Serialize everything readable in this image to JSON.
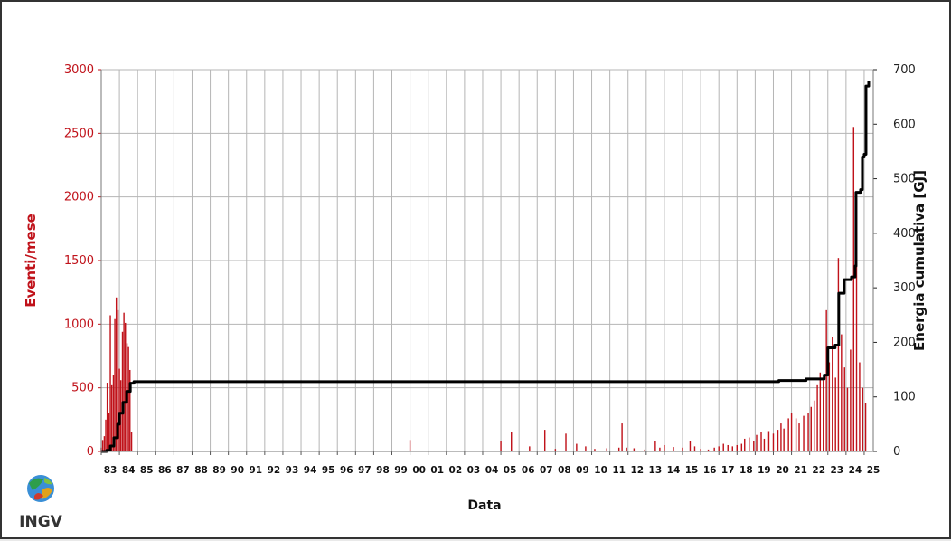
{
  "chart_data": {
    "type": "bar",
    "title": "",
    "xlabel": "Data",
    "ylabel_left": "Eventi/mese",
    "ylabel_right": "Energia cumulativa [GJ]",
    "ylim_left": [
      0,
      3000
    ],
    "ylim_right": [
      0,
      700
    ],
    "yticks_left": [
      "0",
      "500",
      "1000",
      "1500",
      "2000",
      "2500",
      "3000"
    ],
    "yticks_right": [
      "0",
      "100",
      "200",
      "300",
      "400",
      "500",
      "600",
      "700"
    ],
    "x_ticks": [
      "83",
      "84",
      "85",
      "86",
      "87",
      "88",
      "89",
      "90",
      "91",
      "92",
      "93",
      "94",
      "95",
      "96",
      "97",
      "98",
      "99",
      "00",
      "01",
      "02",
      "03",
      "04",
      "05",
      "06",
      "07",
      "08",
      "09",
      "10",
      "11",
      "12",
      "13",
      "14",
      "15",
      "16",
      "17",
      "18",
      "19",
      "20",
      "21",
      "22",
      "23",
      "24",
      "25"
    ],
    "x_range": [
      1983.0,
      2025.5
    ],
    "grid": true,
    "colors": {
      "bars": "#c0121a",
      "cumulative_line": "#000000",
      "grid": "#b5b5b5"
    },
    "series": [
      {
        "name": "Eventi/mese",
        "axis": "left",
        "kind": "bar",
        "points": [
          [
            1983.0,
            30
          ],
          [
            1983.08,
            90
          ],
          [
            1983.17,
            120
          ],
          [
            1983.25,
            250
          ],
          [
            1983.33,
            540
          ],
          [
            1983.42,
            300
          ],
          [
            1983.5,
            1070
          ],
          [
            1983.58,
            520
          ],
          [
            1983.67,
            600
          ],
          [
            1983.75,
            1040
          ],
          [
            1983.83,
            1210
          ],
          [
            1983.92,
            1110
          ],
          [
            1984.0,
            650
          ],
          [
            1984.08,
            560
          ],
          [
            1984.17,
            940
          ],
          [
            1984.25,
            1090
          ],
          [
            1984.33,
            1010
          ],
          [
            1984.42,
            850
          ],
          [
            1984.5,
            820
          ],
          [
            1984.58,
            640
          ],
          [
            1984.67,
            150
          ],
          [
            2000.0,
            90
          ],
          [
            2005.0,
            80
          ],
          [
            2005.58,
            150
          ],
          [
            2006.58,
            40
          ],
          [
            2007.42,
            170
          ],
          [
            2008.0,
            20
          ],
          [
            2008.58,
            140
          ],
          [
            2009.17,
            60
          ],
          [
            2009.67,
            40
          ],
          [
            2010.17,
            20
          ],
          [
            2010.83,
            25
          ],
          [
            2011.5,
            30
          ],
          [
            2011.67,
            220
          ],
          [
            2011.92,
            30
          ],
          [
            2012.33,
            25
          ],
          [
            2012.92,
            15
          ],
          [
            2013.5,
            80
          ],
          [
            2013.75,
            30
          ],
          [
            2014.0,
            50
          ],
          [
            2014.5,
            35
          ],
          [
            2015.0,
            30
          ],
          [
            2015.42,
            80
          ],
          [
            2015.67,
            40
          ],
          [
            2016.0,
            20
          ],
          [
            2016.42,
            15
          ],
          [
            2016.75,
            30
          ],
          [
            2017.0,
            40
          ],
          [
            2017.25,
            60
          ],
          [
            2017.5,
            50
          ],
          [
            2017.75,
            40
          ],
          [
            2018.0,
            50
          ],
          [
            2018.25,
            60
          ],
          [
            2018.42,
            100
          ],
          [
            2018.67,
            110
          ],
          [
            2018.92,
            80
          ],
          [
            2019.08,
            130
          ],
          [
            2019.33,
            150
          ],
          [
            2019.5,
            100
          ],
          [
            2019.75,
            160
          ],
          [
            2020.0,
            140
          ],
          [
            2020.25,
            170
          ],
          [
            2020.42,
            220
          ],
          [
            2020.58,
            180
          ],
          [
            2020.83,
            260
          ],
          [
            2021.0,
            300
          ],
          [
            2021.25,
            260
          ],
          [
            2021.42,
            220
          ],
          [
            2021.67,
            280
          ],
          [
            2021.92,
            300
          ],
          [
            2022.08,
            350
          ],
          [
            2022.25,
            400
          ],
          [
            2022.42,
            520
          ],
          [
            2022.58,
            620
          ],
          [
            2022.75,
            560
          ],
          [
            2022.92,
            1110
          ],
          [
            2023.08,
            700
          ],
          [
            2023.25,
            900
          ],
          [
            2023.42,
            580
          ],
          [
            2023.58,
            1520
          ],
          [
            2023.75,
            920
          ],
          [
            2023.92,
            660
          ],
          [
            2024.08,
            500
          ],
          [
            2024.25,
            800
          ],
          [
            2024.42,
            2550
          ],
          [
            2024.58,
            1990
          ],
          [
            2024.75,
            700
          ],
          [
            2024.92,
            500
          ],
          [
            2025.08,
            380
          ]
        ]
      },
      {
        "name": "Energia cumulativa [GJ]",
        "axis": "right",
        "kind": "step-line",
        "points": [
          [
            1983.0,
            0
          ],
          [
            1983.3,
            2
          ],
          [
            1983.5,
            10
          ],
          [
            1983.7,
            25
          ],
          [
            1983.9,
            50
          ],
          [
            1984.0,
            70
          ],
          [
            1984.2,
            90
          ],
          [
            1984.4,
            110
          ],
          [
            1984.6,
            125
          ],
          [
            1984.8,
            128
          ],
          [
            2019.9,
            128
          ],
          [
            2020.3,
            130
          ],
          [
            2021.8,
            133
          ],
          [
            2022.8,
            140
          ],
          [
            2023.0,
            190
          ],
          [
            2023.4,
            195
          ],
          [
            2023.6,
            290
          ],
          [
            2023.9,
            315
          ],
          [
            2024.3,
            320
          ],
          [
            2024.5,
            340
          ],
          [
            2024.55,
            475
          ],
          [
            2024.8,
            480
          ],
          [
            2024.9,
            540
          ],
          [
            2025.0,
            545
          ],
          [
            2025.1,
            670
          ],
          [
            2025.25,
            680
          ]
        ]
      }
    ]
  },
  "logo": {
    "text": "INGV"
  }
}
